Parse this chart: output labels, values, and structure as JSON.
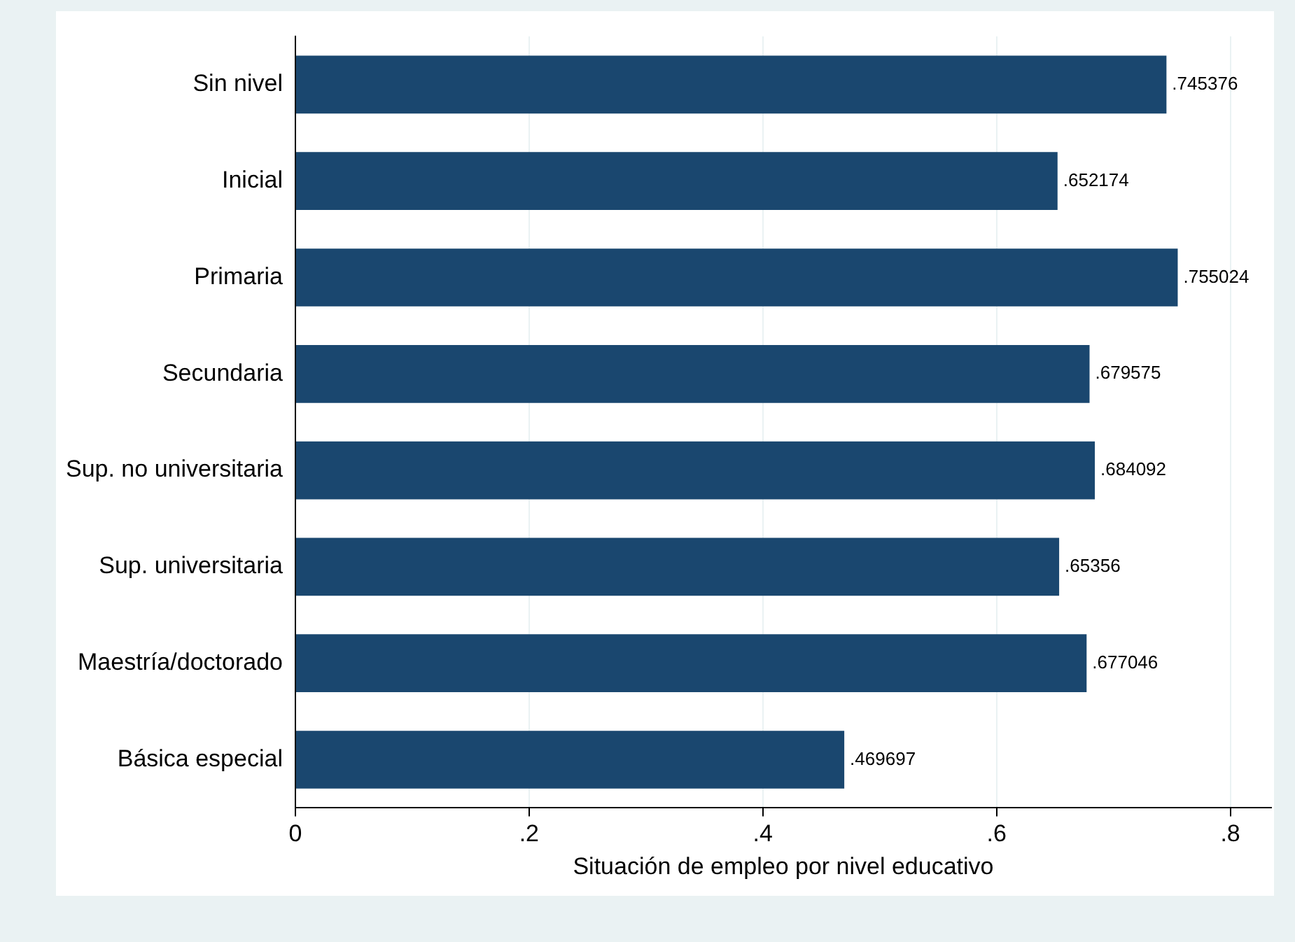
{
  "chart_data": {
    "type": "bar",
    "orientation": "horizontal",
    "xlabel": "Situación de empleo por nivel educativo",
    "categories": [
      "Sin nivel",
      "Inicial",
      "Primaria",
      "Secundaria",
      "Sup. no universitaria",
      "Sup. universitaria",
      "Maestría/doctorado",
      "Básica especial"
    ],
    "values": [
      0.745376,
      0.652174,
      0.755024,
      0.679575,
      0.684092,
      0.65356,
      0.677046,
      0.469697
    ],
    "value_labels": [
      ".745376",
      ".652174",
      ".755024",
      ".679575",
      ".684092",
      ".65356",
      ".677046",
      ".469697"
    ],
    "color": "#1a476f",
    "xlim": [
      0,
      0.835
    ],
    "xticks": [
      0,
      {
        "value": 0.2,
        "label": ".2"
      },
      {
        "value": 0.4,
        "label": ".4"
      },
      {
        "value": 0.6,
        "label": ".6"
      },
      {
        "value": 0.8,
        "label": ".8"
      }
    ],
    "grid": "x",
    "legend": false
  }
}
